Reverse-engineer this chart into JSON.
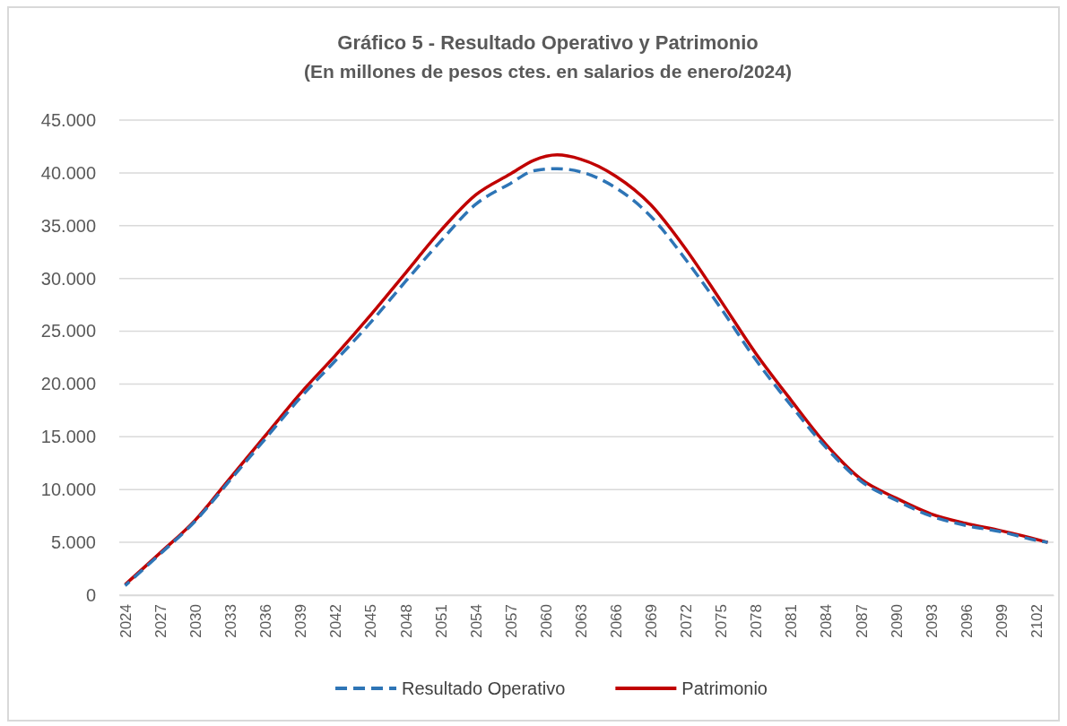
{
  "chart_data": {
    "type": "line",
    "title": "Gráfico 5 - Resultado Operativo y Patrimonio",
    "subtitle": "(En millones de pesos ctes. en salarios de enero/2024)",
    "x": [
      2024,
      2027,
      2030,
      2033,
      2036,
      2039,
      2042,
      2045,
      2048,
      2051,
      2054,
      2057,
      2059,
      2061,
      2063,
      2066,
      2069,
      2072,
      2075,
      2078,
      2081,
      2084,
      2087,
      2090,
      2093,
      2096,
      2099,
      2102,
      2103
    ],
    "series": [
      {
        "name": "Resultado Operativo",
        "color": "#2e75b6",
        "line_style": "dashed",
        "values": [
          900,
          3900,
          7000,
          10900,
          14800,
          18700,
          22200,
          25800,
          29700,
          33500,
          37000,
          39000,
          40200,
          40400,
          40100,
          38600,
          35900,
          31800,
          27200,
          22300,
          18000,
          14000,
          10800,
          9000,
          7500,
          6600,
          6000,
          5200,
          5000
        ]
      },
      {
        "name": "Patrimonio",
        "color": "#c00000",
        "line_style": "solid",
        "values": [
          1000,
          4000,
          7100,
          11100,
          15100,
          19100,
          22700,
          26500,
          30500,
          34500,
          37900,
          39900,
          41200,
          41700,
          41300,
          39700,
          37000,
          32800,
          27900,
          22900,
          18500,
          14300,
          11000,
          9200,
          7700,
          6800,
          6100,
          5300,
          5000
        ]
      }
    ],
    "xlim": [
      2023.5,
      2103.5
    ],
    "xticks": [
      2024,
      2027,
      2030,
      2033,
      2036,
      2039,
      2042,
      2045,
      2048,
      2051,
      2054,
      2057,
      2060,
      2063,
      2066,
      2069,
      2072,
      2075,
      2078,
      2081,
      2084,
      2087,
      2090,
      2093,
      2096,
      2099,
      2102
    ],
    "ylim": [
      0,
      45000
    ],
    "yticks": [
      0,
      {
        "value": 5000,
        "label": "5.000"
      },
      {
        "value": 10000,
        "label": "10.000"
      },
      {
        "value": 15000,
        "label": "15.000"
      },
      {
        "value": 20000,
        "label": "20.000"
      },
      {
        "value": 25000,
        "label": "25.000"
      },
      {
        "value": 30000,
        "label": "30.000"
      },
      {
        "value": 35000,
        "label": "35.000"
      },
      {
        "value": 40000,
        "label": "40.000"
      },
      {
        "value": 45000,
        "label": "45.000"
      }
    ],
    "grid": "y",
    "legend": "bottom",
    "marker": "none"
  }
}
